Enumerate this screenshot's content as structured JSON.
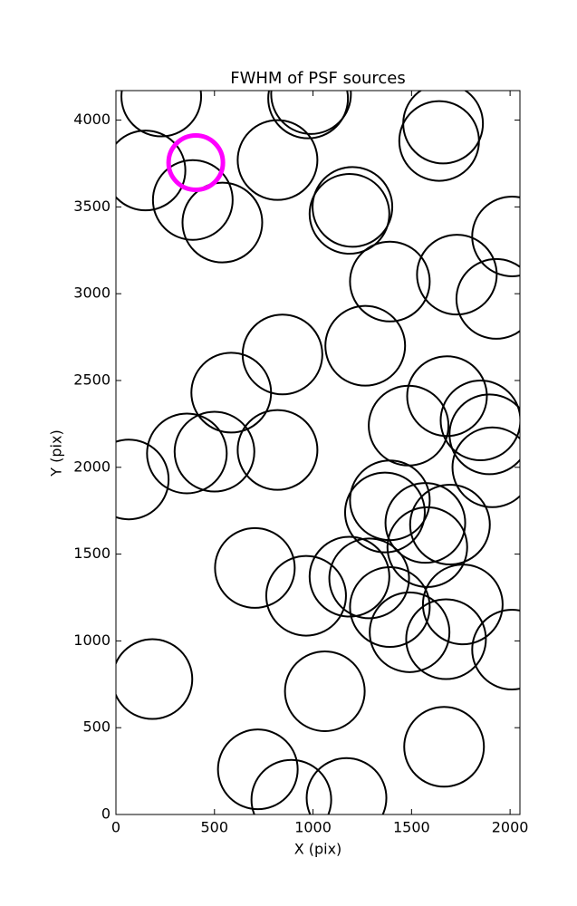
{
  "chart_data": {
    "type": "scatter",
    "title": "FWHM of PSF sources",
    "xlabel": "X (pix)",
    "ylabel": "Y (pix)",
    "xlim": [
      0,
      2050
    ],
    "ylim": [
      0,
      4170
    ],
    "xticks": [
      0,
      500,
      1000,
      1500,
      2000
    ],
    "yticks": [
      0,
      500,
      1000,
      1500,
      2000,
      2500,
      3000,
      3500,
      4000
    ],
    "color": "#000000",
    "x": [
      230,
      990,
      975,
      1660,
      1640,
      150,
      390,
      540,
      820,
      1200,
      1185,
      1390,
      1730,
      1930,
      2010,
      845,
      1265,
      585,
      1680,
      1485,
      1850,
      1895,
      1910,
      65,
      360,
      500,
      820,
      1390,
      1365,
      1570,
      1695,
      1580,
      705,
      965,
      1185,
      1285,
      1390,
      1760,
      1490,
      1675,
      2010,
      185,
      1060,
      720,
      890,
      1170,
      1665
    ],
    "y": [
      4136,
      4150,
      4125,
      3980,
      3880,
      3710,
      3540,
      3410,
      3770,
      3500,
      3460,
      3070,
      3110,
      2970,
      3330,
      2650,
      2700,
      2430,
      2410,
      2240,
      2270,
      2190,
      2000,
      1930,
      2080,
      2090,
      2100,
      1810,
      1740,
      1680,
      1670,
      1540,
      1420,
      1260,
      1370,
      1360,
      1195,
      1210,
      1050,
      1010,
      950,
      780,
      710,
      260,
      85,
      95,
      390
    ],
    "highlight": {
      "x": [
        405
      ],
      "y": [
        3755
      ],
      "color": "#ff00ff"
    }
  }
}
